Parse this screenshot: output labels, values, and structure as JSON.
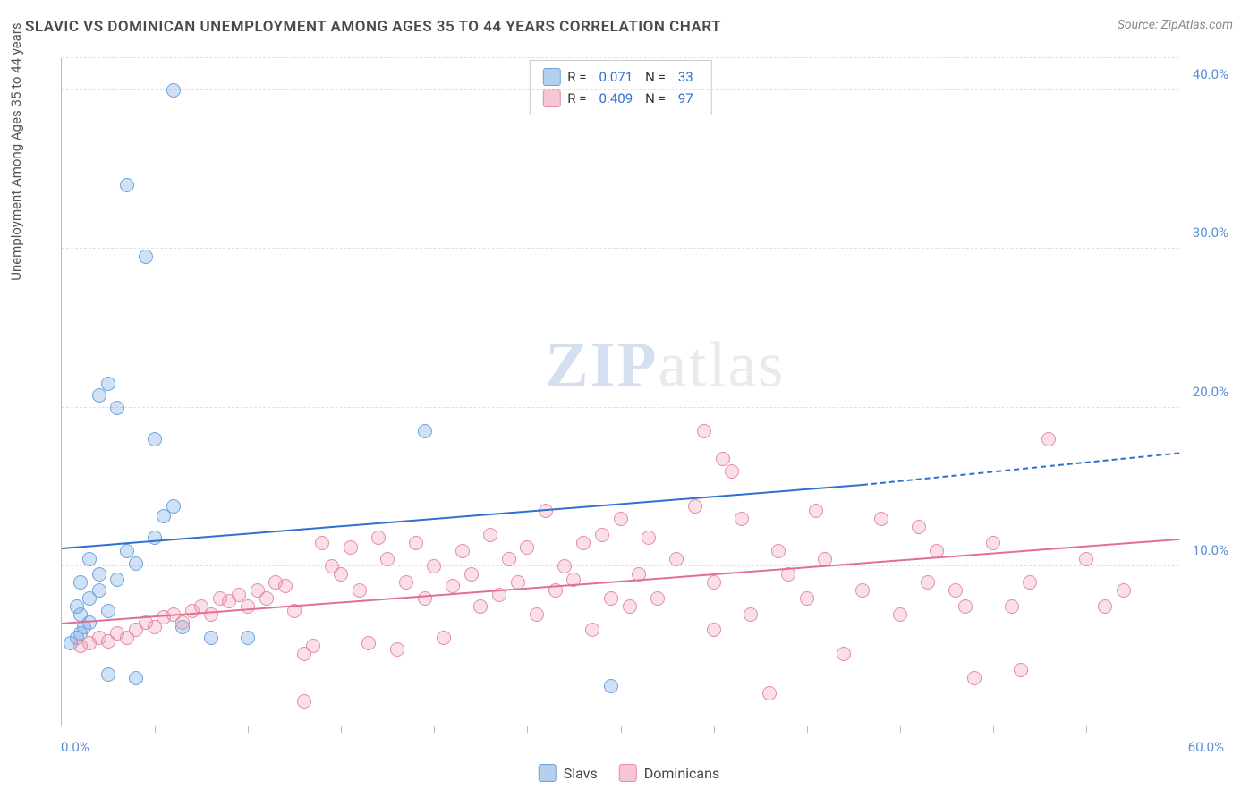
{
  "title": "SLAVIC VS DOMINICAN UNEMPLOYMENT AMONG AGES 35 TO 44 YEARS CORRELATION CHART",
  "source": "Source: ZipAtlas.com",
  "ylabel": "Unemployment Among Ages 35 to 44 years",
  "watermark_bold": "ZIP",
  "watermark_light": "atlas",
  "chart": {
    "type": "scatter",
    "xlim": [
      0,
      60
    ],
    "ylim": [
      0,
      42
    ],
    "x_min_label": "0.0%",
    "x_max_label": "60.0%",
    "y_ticks": [
      {
        "v": 10,
        "label": "10.0%"
      },
      {
        "v": 20,
        "label": "20.0%"
      },
      {
        "v": 30,
        "label": "30.0%"
      },
      {
        "v": 40,
        "label": "40.0%"
      }
    ],
    "x_tick_positions": [
      5,
      10,
      15,
      20,
      25,
      30,
      35,
      40,
      45,
      50,
      55
    ],
    "grid_color": "#e0e0e0",
    "background_color": "#ffffff",
    "axis_color": "#bbbbbb",
    "marker_size": 16,
    "series": [
      {
        "name": "Slavs",
        "color_class": "blue",
        "fill": "rgba(120,170,225,0.35)",
        "stroke": "#6fa3db",
        "R": "0.071",
        "N": "33",
        "regression": {
          "x1": 0,
          "y1": 11.2,
          "x2": 43,
          "y2": 15.2,
          "dash_to_x": 60,
          "dash_to_y": 17.2,
          "color": "#2f6fd0"
        },
        "points": [
          [
            0.5,
            5.2
          ],
          [
            0.8,
            5.5
          ],
          [
            1.0,
            5.8
          ],
          [
            1.2,
            6.2
          ],
          [
            1.5,
            6.5
          ],
          [
            1.0,
            7.0
          ],
          [
            0.8,
            7.5
          ],
          [
            1.5,
            8.0
          ],
          [
            2.0,
            8.5
          ],
          [
            2.5,
            7.2
          ],
          [
            1.0,
            9.0
          ],
          [
            2.0,
            9.5
          ],
          [
            3.0,
            9.2
          ],
          [
            1.5,
            10.5
          ],
          [
            3.5,
            11.0
          ],
          [
            5.0,
            11.8
          ],
          [
            4.0,
            10.2
          ],
          [
            2.5,
            3.2
          ],
          [
            4.0,
            3.0
          ],
          [
            6.5,
            6.2
          ],
          [
            10.0,
            5.5
          ],
          [
            5.5,
            13.2
          ],
          [
            6.0,
            13.8
          ],
          [
            3.0,
            20.0
          ],
          [
            2.0,
            20.8
          ],
          [
            2.5,
            21.5
          ],
          [
            5.0,
            18.0
          ],
          [
            4.5,
            29.5
          ],
          [
            3.5,
            34.0
          ],
          [
            6.0,
            40.0
          ],
          [
            19.5,
            18.5
          ],
          [
            29.5,
            2.5
          ],
          [
            8.0,
            5.5
          ]
        ]
      },
      {
        "name": "Dominicans",
        "color_class": "pink",
        "fill": "rgba(240,150,175,0.3)",
        "stroke": "#e48ca6",
        "R": "0.409",
        "N": "97",
        "regression": {
          "x1": 0,
          "y1": 6.5,
          "x2": 60,
          "y2": 11.8,
          "color": "#e26f93"
        },
        "points": [
          [
            1.0,
            5.0
          ],
          [
            1.5,
            5.2
          ],
          [
            2.0,
            5.5
          ],
          [
            2.5,
            5.3
          ],
          [
            3.0,
            5.8
          ],
          [
            3.5,
            5.5
          ],
          [
            4.0,
            6.0
          ],
          [
            4.5,
            6.5
          ],
          [
            5.0,
            6.2
          ],
          [
            5.5,
            6.8
          ],
          [
            6.0,
            7.0
          ],
          [
            6.5,
            6.5
          ],
          [
            7.0,
            7.2
          ],
          [
            7.5,
            7.5
          ],
          [
            8.0,
            7.0
          ],
          [
            8.5,
            8.0
          ],
          [
            9.0,
            7.8
          ],
          [
            9.5,
            8.2
          ],
          [
            10.0,
            7.5
          ],
          [
            10.5,
            8.5
          ],
          [
            11.0,
            8.0
          ],
          [
            11.5,
            9.0
          ],
          [
            12.0,
            8.8
          ],
          [
            12.5,
            7.2
          ],
          [
            13.0,
            4.5
          ],
          [
            13.5,
            5.0
          ],
          [
            14.0,
            11.5
          ],
          [
            14.5,
            10.0
          ],
          [
            15.0,
            9.5
          ],
          [
            15.5,
            11.2
          ],
          [
            16.0,
            8.5
          ],
          [
            16.5,
            5.2
          ],
          [
            17.0,
            11.8
          ],
          [
            17.5,
            10.5
          ],
          [
            18.0,
            4.8
          ],
          [
            18.5,
            9.0
          ],
          [
            19.0,
            11.5
          ],
          [
            19.5,
            8.0
          ],
          [
            20.0,
            10.0
          ],
          [
            20.5,
            5.5
          ],
          [
            21.0,
            8.8
          ],
          [
            21.5,
            11.0
          ],
          [
            22.0,
            9.5
          ],
          [
            22.5,
            7.5
          ],
          [
            23.0,
            12.0
          ],
          [
            23.5,
            8.2
          ],
          [
            24.0,
            10.5
          ],
          [
            24.5,
            9.0
          ],
          [
            25.0,
            11.2
          ],
          [
            25.5,
            7.0
          ],
          [
            26.0,
            13.5
          ],
          [
            26.5,
            8.5
          ],
          [
            27.0,
            10.0
          ],
          [
            27.5,
            9.2
          ],
          [
            28.0,
            11.5
          ],
          [
            28.5,
            6.0
          ],
          [
            29.0,
            12.0
          ],
          [
            29.5,
            8.0
          ],
          [
            30.0,
            13.0
          ],
          [
            30.5,
            7.5
          ],
          [
            31.0,
            9.5
          ],
          [
            31.5,
            11.8
          ],
          [
            32.0,
            8.0
          ],
          [
            33.0,
            10.5
          ],
          [
            34.0,
            13.8
          ],
          [
            34.5,
            18.5
          ],
          [
            35.0,
            9.0
          ],
          [
            35.5,
            16.8
          ],
          [
            36.0,
            16.0
          ],
          [
            36.5,
            13.0
          ],
          [
            37.0,
            7.0
          ],
          [
            38.0,
            2.0
          ],
          [
            38.5,
            11.0
          ],
          [
            39.0,
            9.5
          ],
          [
            40.0,
            8.0
          ],
          [
            40.5,
            13.5
          ],
          [
            41.0,
            10.5
          ],
          [
            42.0,
            4.5
          ],
          [
            43.0,
            8.5
          ],
          [
            44.0,
            13.0
          ],
          [
            45.0,
            7.0
          ],
          [
            46.0,
            12.5
          ],
          [
            46.5,
            9.0
          ],
          [
            47.0,
            11.0
          ],
          [
            48.0,
            8.5
          ],
          [
            49.0,
            3.0
          ],
          [
            50.0,
            11.5
          ],
          [
            51.0,
            7.5
          ],
          [
            51.5,
            3.5
          ],
          [
            52.0,
            9.0
          ],
          [
            53.0,
            18.0
          ],
          [
            55.0,
            10.5
          ],
          [
            56.0,
            7.5
          ],
          [
            57.0,
            8.5
          ],
          [
            48.5,
            7.5
          ],
          [
            13.0,
            1.5
          ],
          [
            35.0,
            6.0
          ]
        ]
      }
    ]
  },
  "bottom_legend": [
    {
      "label": "Slavs",
      "class": "blue"
    },
    {
      "label": "Dominicans",
      "class": "pink"
    }
  ]
}
